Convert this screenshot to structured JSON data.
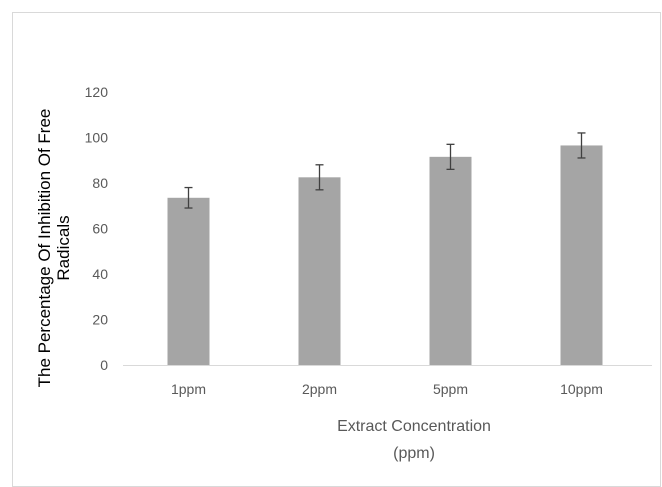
{
  "chart_data": {
    "type": "bar",
    "categories": [
      "1ppm",
      "2ppm",
      "5ppm",
      "10ppm"
    ],
    "values": [
      73.5,
      82.5,
      91.5,
      96.5
    ],
    "error": [
      4.5,
      5.5,
      5.5,
      5.5
    ],
    "title": "",
    "xlabel_lines": [
      "Extract Concentration",
      "(ppm)"
    ],
    "ylabel_lines": [
      "The Percentage Of Inhibition Of Free",
      "Radicals"
    ],
    "ylim": [
      0,
      120
    ],
    "yticks": [
      0,
      20,
      40,
      60,
      80,
      100,
      120
    ],
    "grid": false,
    "legend": "none",
    "colors": {
      "bar": "#a5a5a5",
      "error": "#404040",
      "axis": "#d9d9d9",
      "border": "#d9d9d9"
    }
  }
}
